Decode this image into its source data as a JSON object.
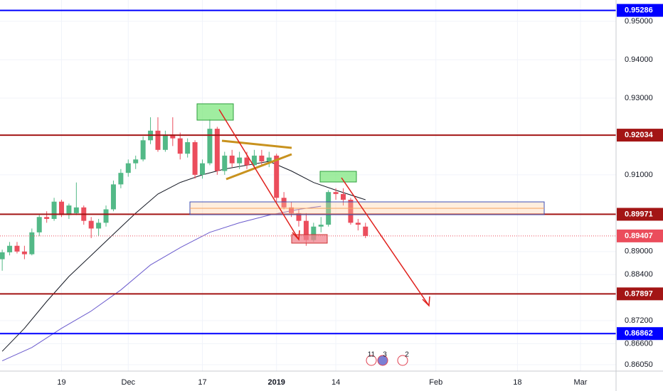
{
  "chart_data": {
    "type": "candlestick",
    "x": [
      0,
      1,
      2,
      3,
      4,
      5,
      6,
      7,
      8,
      9,
      10,
      11,
      12,
      13,
      14,
      15,
      16,
      17,
      18,
      19,
      20,
      21,
      22,
      23,
      24,
      25,
      26,
      27,
      28,
      29,
      30,
      31,
      32,
      33,
      34,
      35,
      36,
      37,
      38,
      39,
      40,
      41,
      42,
      43,
      44,
      45,
      46,
      47,
      48,
      49
    ],
    "open": [
      0.888,
      0.8898,
      0.8915,
      0.89,
      0.8893,
      0.895,
      0.899,
      0.8985,
      0.903,
      0.8995,
      0.9,
      0.9015,
      0.898,
      0.896,
      0.8975,
      0.901,
      0.9075,
      0.9105,
      0.913,
      0.914,
      0.919,
      0.9215,
      0.9165,
      0.9205,
      0.9195,
      0.9155,
      0.9185,
      0.91,
      0.913,
      0.922,
      0.911,
      0.915,
      0.913,
      0.9145,
      0.9125,
      0.915,
      0.9135,
      0.915,
      0.904,
      0.9015,
      0.9,
      0.898,
      0.893,
      0.8965,
      0.897,
      0.9055,
      0.905,
      0.9035,
      0.8975,
      0.8965
    ],
    "high": [
      0.8905,
      0.8925,
      0.8925,
      0.8915,
      0.896,
      0.8995,
      0.9005,
      0.904,
      0.9035,
      0.9025,
      0.908,
      0.902,
      0.899,
      0.8985,
      0.902,
      0.9085,
      0.9115,
      0.914,
      0.915,
      0.92,
      0.925,
      0.925,
      0.9215,
      0.925,
      0.921,
      0.9195,
      0.919,
      0.914,
      0.9245,
      0.9225,
      0.916,
      0.9165,
      0.916,
      0.916,
      0.9165,
      0.9165,
      0.916,
      0.9155,
      0.9055,
      0.903,
      0.901,
      0.9,
      0.8975,
      0.899,
      0.906,
      0.9065,
      0.9065,
      0.904,
      0.8985,
      0.8975
    ],
    "low": [
      0.885,
      0.889,
      0.8895,
      0.888,
      0.889,
      0.894,
      0.8975,
      0.898,
      0.899,
      0.8985,
      0.8995,
      0.897,
      0.8935,
      0.894,
      0.8965,
      0.9005,
      0.9065,
      0.9095,
      0.9115,
      0.9135,
      0.918,
      0.916,
      0.916,
      0.9175,
      0.914,
      0.9145,
      0.909,
      0.909,
      0.9125,
      0.91,
      0.91,
      0.912,
      0.9115,
      0.9115,
      0.912,
      0.9125,
      0.912,
      0.903,
      0.901,
      0.899,
      0.8965,
      0.8915,
      0.8925,
      0.895,
      0.8965,
      0.9035,
      0.902,
      0.897,
      0.8955,
      0.8935
    ],
    "close": [
      0.8898,
      0.8915,
      0.89,
      0.8893,
      0.895,
      0.899,
      0.8985,
      0.903,
      0.8995,
      0.902,
      0.9015,
      0.898,
      0.896,
      0.8975,
      0.901,
      0.9075,
      0.9105,
      0.913,
      0.914,
      0.919,
      0.9215,
      0.9165,
      0.9205,
      0.9195,
      0.9155,
      0.9185,
      0.91,
      0.913,
      0.922,
      0.911,
      0.915,
      0.913,
      0.9145,
      0.9125,
      0.915,
      0.9135,
      0.9145,
      0.904,
      0.9015,
      0.9,
      0.898,
      0.893,
      0.8965,
      0.897,
      0.9055,
      0.905,
      0.9035,
      0.8975,
      0.897,
      0.89407
    ],
    "up_color": "#53b987",
    "down_color": "#eb4d5c",
    "lines": [
      {
        "color": "#131722",
        "x": [
          0,
          3,
          6,
          9,
          12,
          15,
          18,
          21,
          24,
          27,
          30,
          33,
          36,
          39,
          42,
          45,
          49
        ],
        "values": [
          0.864,
          0.87,
          0.877,
          0.8835,
          0.889,
          0.8945,
          0.9,
          0.905,
          0.908,
          0.91,
          0.9115,
          0.9125,
          0.9135,
          0.911,
          0.908,
          0.906,
          0.9035
        ]
      },
      {
        "color": "#6a5acd",
        "x": [
          0,
          4,
          8,
          12,
          16,
          20,
          24,
          28,
          32,
          36,
          40,
          43
        ],
        "values": [
          0.8615,
          0.865,
          0.87,
          0.8745,
          0.88,
          0.8865,
          0.891,
          0.895,
          0.8975,
          0.8995,
          0.901,
          0.9018
        ]
      }
    ],
    "levels": [
      {
        "value": 0.95286,
        "color": "#0000ff"
      },
      {
        "value": 0.92034,
        "color": "#a31515"
      },
      {
        "value": 0.89971,
        "color": "#a31515"
      },
      {
        "value": 0.87897,
        "color": "#a31515"
      },
      {
        "value": 0.86862,
        "color": "#0000ff"
      }
    ],
    "last_price": {
      "value": 0.89407,
      "color": "#eb4d5c"
    },
    "xlim": [
      -0.3,
      82.8
    ],
    "ylim": [
      0.85884,
      0.95556
    ],
    "yticks": [
      {
        "value": 0.95,
        "label": "0.95000"
      },
      {
        "value": 0.94,
        "label": "0.94000"
      },
      {
        "value": 0.93,
        "label": "0.93000"
      },
      {
        "value": 0.91,
        "label": "0.91000"
      },
      {
        "value": 0.89,
        "label": "0.89000"
      },
      {
        "value": 0.884,
        "label": "0.88400"
      },
      {
        "value": 0.872,
        "label": "0.87200"
      },
      {
        "value": 0.866,
        "label": "0.86600"
      },
      {
        "value": 0.8605,
        "label": "0.86050"
      }
    ],
    "xticks": [
      {
        "value": 8,
        "label": "19"
      },
      {
        "value": 17,
        "label": "Dec"
      },
      {
        "value": 27,
        "label": "17"
      },
      {
        "value": 37,
        "label": "2019"
      },
      {
        "value": 45,
        "label": "14"
      },
      {
        "value": 58.5,
        "label": "Feb"
      },
      {
        "value": 69.5,
        "label": "18"
      },
      {
        "value": 78,
        "label": "Mar"
      }
    ],
    "grid": true,
    "events": [
      "11",
      "3",
      "2"
    ]
  }
}
